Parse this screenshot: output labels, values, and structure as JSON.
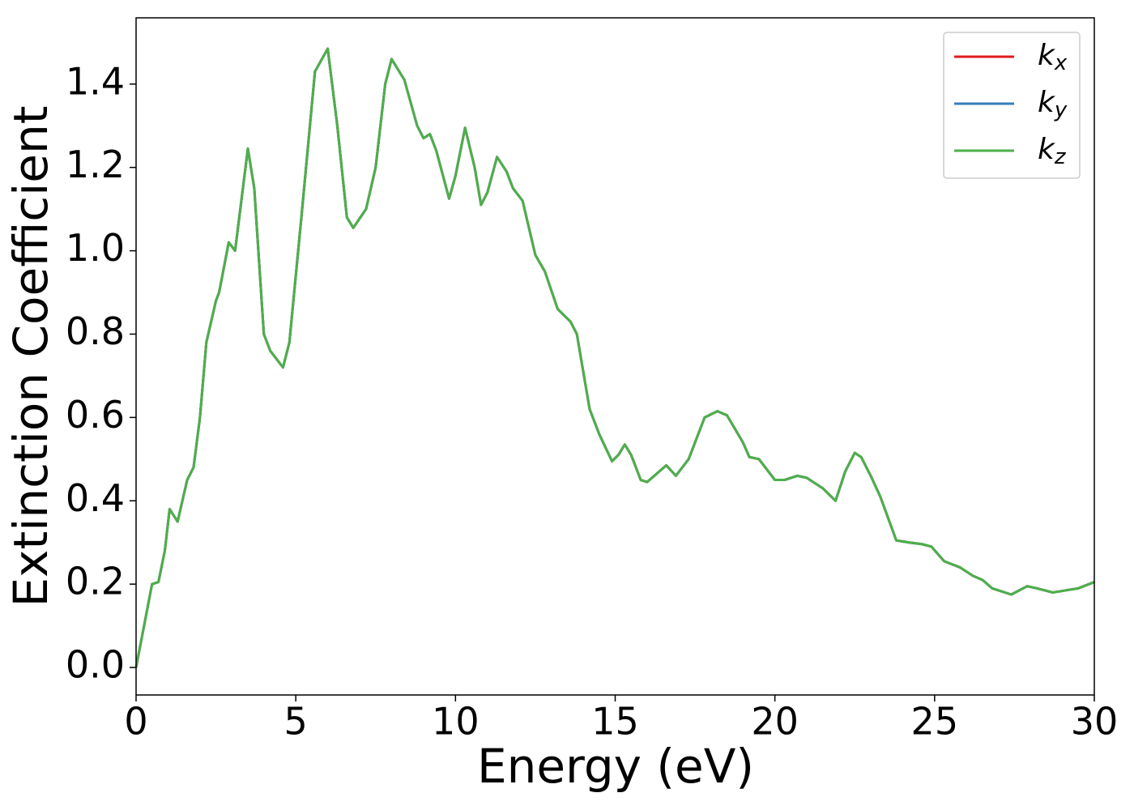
{
  "chart_data": {
    "type": "line",
    "xlabel": "Energy (eV)",
    "ylabel": "Extinction Coefficient",
    "xlim": [
      0,
      30
    ],
    "ylim": [
      -0.066,
      1.559
    ],
    "xticks": [
      0,
      5,
      10,
      15,
      20,
      25,
      30
    ],
    "yticks": [
      {
        "value": 0,
        "label": "0.0"
      },
      0.2,
      0.4,
      0.6,
      0.8,
      {
        "value": 1,
        "label": "1.0"
      },
      1.2,
      1.4
    ],
    "legend": "upper right",
    "x": [
      0,
      0.2,
      0.5,
      0.7,
      0.9,
      1.05,
      1.3,
      1.6,
      1.8,
      2.0,
      2.2,
      2.5,
      2.6,
      2.9,
      3.1,
      3.5,
      3.7,
      4.0,
      4.2,
      4.6,
      4.8,
      5.2,
      5.6,
      6.0,
      6.3,
      6.6,
      6.8,
      7.2,
      7.5,
      7.8,
      8.0,
      8.4,
      8.8,
      9.0,
      9.2,
      9.4,
      9.8,
      10.0,
      10.3,
      10.6,
      10.8,
      11.0,
      11.3,
      11.6,
      11.8,
      12.1,
      12.5,
      12.8,
      13.2,
      13.6,
      13.8,
      14.2,
      14.5,
      14.9,
      15.1,
      15.3,
      15.5,
      15.8,
      16.0,
      16.6,
      16.9,
      17.3,
      17.8,
      18.2,
      18.5,
      19.0,
      19.2,
      19.5,
      20.0,
      20.3,
      20.7,
      21.0,
      21.5,
      21.9,
      22.2,
      22.5,
      22.7,
      23.0,
      23.3,
      23.8,
      24.2,
      24.6,
      24.9,
      25.3,
      25.8,
      26.2,
      26.5,
      26.8,
      27.4,
      27.9,
      28.2,
      28.7,
      29.5,
      30
    ],
    "series": [
      {
        "name": "kx",
        "color": "#e41a1c",
        "values": [
          0,
          0.08,
          0.2,
          0.205,
          0.28,
          0.38,
          0.35,
          0.45,
          0.48,
          0.6,
          0.78,
          0.88,
          0.9,
          1.02,
          1.0,
          1.245,
          1.15,
          0.8,
          0.76,
          0.72,
          0.78,
          1.1,
          1.43,
          1.485,
          1.3,
          1.08,
          1.055,
          1.1,
          1.2,
          1.4,
          1.46,
          1.41,
          1.3,
          1.27,
          1.28,
          1.24,
          1.125,
          1.18,
          1.295,
          1.2,
          1.11,
          1.14,
          1.225,
          1.19,
          1.15,
          1.12,
          0.99,
          0.95,
          0.86,
          0.83,
          0.8,
          0.62,
          0.56,
          0.495,
          0.51,
          0.535,
          0.51,
          0.45,
          0.445,
          0.485,
          0.46,
          0.5,
          0.6,
          0.615,
          0.605,
          0.54,
          0.505,
          0.5,
          0.45,
          0.45,
          0.46,
          0.455,
          0.43,
          0.4,
          0.47,
          0.515,
          0.505,
          0.46,
          0.41,
          0.305,
          0.3,
          0.296,
          0.29,
          0.255,
          0.24,
          0.22,
          0.21,
          0.19,
          0.175,
          0.195,
          0.19,
          0.18,
          0.19,
          0.205
        ]
      },
      {
        "name": "ky",
        "color": "#377eb8",
        "values": [
          0,
          0.08,
          0.2,
          0.205,
          0.28,
          0.38,
          0.35,
          0.45,
          0.48,
          0.6,
          0.78,
          0.88,
          0.9,
          1.02,
          1.0,
          1.245,
          1.15,
          0.8,
          0.76,
          0.72,
          0.78,
          1.1,
          1.43,
          1.485,
          1.3,
          1.08,
          1.055,
          1.1,
          1.2,
          1.4,
          1.46,
          1.41,
          1.3,
          1.27,
          1.28,
          1.24,
          1.125,
          1.18,
          1.295,
          1.2,
          1.11,
          1.14,
          1.225,
          1.19,
          1.15,
          1.12,
          0.99,
          0.95,
          0.86,
          0.83,
          0.8,
          0.62,
          0.56,
          0.495,
          0.51,
          0.535,
          0.51,
          0.45,
          0.445,
          0.485,
          0.46,
          0.5,
          0.6,
          0.615,
          0.605,
          0.54,
          0.505,
          0.5,
          0.45,
          0.45,
          0.46,
          0.455,
          0.43,
          0.4,
          0.47,
          0.515,
          0.505,
          0.46,
          0.41,
          0.305,
          0.3,
          0.296,
          0.29,
          0.255,
          0.24,
          0.22,
          0.21,
          0.19,
          0.175,
          0.195,
          0.19,
          0.18,
          0.19,
          0.205
        ]
      },
      {
        "name": "kz",
        "color": "#4daf4a",
        "values": [
          0,
          0.08,
          0.2,
          0.205,
          0.28,
          0.38,
          0.35,
          0.45,
          0.48,
          0.6,
          0.78,
          0.88,
          0.9,
          1.02,
          1.0,
          1.245,
          1.15,
          0.8,
          0.76,
          0.72,
          0.78,
          1.1,
          1.43,
          1.485,
          1.3,
          1.08,
          1.055,
          1.1,
          1.2,
          1.4,
          1.46,
          1.41,
          1.3,
          1.27,
          1.28,
          1.24,
          1.125,
          1.18,
          1.295,
          1.2,
          1.11,
          1.14,
          1.225,
          1.19,
          1.15,
          1.12,
          0.99,
          0.95,
          0.86,
          0.83,
          0.8,
          0.62,
          0.56,
          0.495,
          0.51,
          0.535,
          0.51,
          0.45,
          0.445,
          0.485,
          0.46,
          0.5,
          0.6,
          0.615,
          0.605,
          0.54,
          0.505,
          0.5,
          0.45,
          0.45,
          0.46,
          0.455,
          0.43,
          0.4,
          0.47,
          0.515,
          0.505,
          0.46,
          0.41,
          0.305,
          0.3,
          0.296,
          0.29,
          0.255,
          0.24,
          0.22,
          0.21,
          0.19,
          0.175,
          0.195,
          0.19,
          0.18,
          0.19,
          0.205
        ]
      }
    ]
  }
}
